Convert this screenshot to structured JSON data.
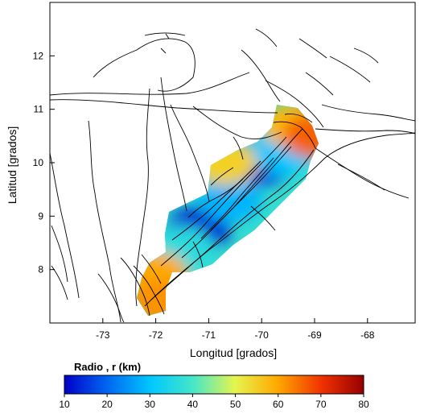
{
  "map": {
    "xlabel": "Longitud [grados]",
    "ylabel": "Latitud [grados]",
    "xlim": [
      -74,
      -67.1
    ],
    "ylim": [
      7,
      13
    ],
    "x_ticks": [
      -73,
      -72,
      -71,
      -70,
      -69,
      -68
    ],
    "x_tick_labels": [
      "-73",
      "-72",
      "-71",
      "-70",
      "-69",
      "-68"
    ],
    "y_ticks": [
      8,
      9,
      10,
      11,
      12
    ],
    "y_tick_labels": [
      "8",
      "9",
      "10",
      "11",
      "12"
    ]
  },
  "colorbar": {
    "title": "Radio , r (km)",
    "min": 10,
    "max": 80,
    "ticks": [
      10,
      20,
      30,
      40,
      50,
      60,
      70,
      80
    ],
    "tick_labels": [
      "10",
      "20",
      "30",
      "40",
      "50",
      "60",
      "70",
      "80"
    ],
    "stops": [
      "#0000c8",
      "#0064f0",
      "#00c8ff",
      "#46e6c8",
      "#e6f550",
      "#ffaa00",
      "#f03200",
      "#960000"
    ]
  },
  "radius_field": [
    {
      "lon": -71.2,
      "lat": 8.75,
      "r": 12
    },
    {
      "lon": -70.0,
      "lat": 10.0,
      "r": 14
    },
    {
      "lon": -70.6,
      "lat": 9.3,
      "r": 28
    },
    {
      "lon": -71.5,
      "lat": 8.4,
      "r": 36
    },
    {
      "lon": -69.6,
      "lat": 10.2,
      "r": 30
    },
    {
      "lon": -72.0,
      "lat": 7.9,
      "r": 60
    },
    {
      "lon": -71.9,
      "lat": 7.4,
      "r": 62
    },
    {
      "lon": -69.4,
      "lat": 10.7,
      "r": 58
    },
    {
      "lon": -69.0,
      "lat": 10.5,
      "r": 66
    },
    {
      "lon": -70.7,
      "lat": 10.0,
      "r": 55
    }
  ]
}
